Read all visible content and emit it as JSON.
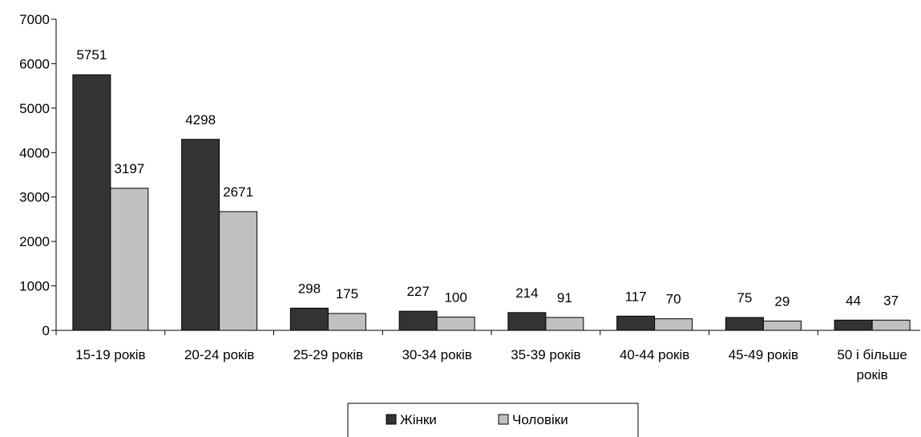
{
  "chart_data": {
    "type": "bar",
    "categories": [
      [
        "15-19 років"
      ],
      [
        "20-24 років"
      ],
      [
        "25-29 років"
      ],
      [
        "30-34 років"
      ],
      [
        "35-39 років"
      ],
      [
        "40-44 років"
      ],
      [
        "45-49 років"
      ],
      [
        "50 і більше",
        "років"
      ]
    ],
    "series": [
      {
        "name": "Жінки",
        "color": "#333333",
        "values": [
          5751,
          4298,
          298,
          227,
          214,
          117,
          75,
          44
        ],
        "bar_heights": [
          5751,
          4298,
          500,
          430,
          400,
          320,
          290,
          230
        ]
      },
      {
        "name": "Чоловіки",
        "color": "#c0c0c0",
        "values": [
          3197,
          2671,
          175,
          100,
          91,
          70,
          29,
          37
        ],
        "bar_heights": [
          3197,
          2671,
          380,
          300,
          290,
          260,
          210,
          230
        ]
      }
    ],
    "title": "",
    "xlabel": "",
    "ylabel": "",
    "ylim": [
      0,
      7000
    ],
    "yticks": [
      "0",
      "1000",
      "2000",
      "3000",
      "4000",
      "5000",
      "6000",
      "7000"
    ],
    "grid": false,
    "legend_position": "bottom"
  }
}
